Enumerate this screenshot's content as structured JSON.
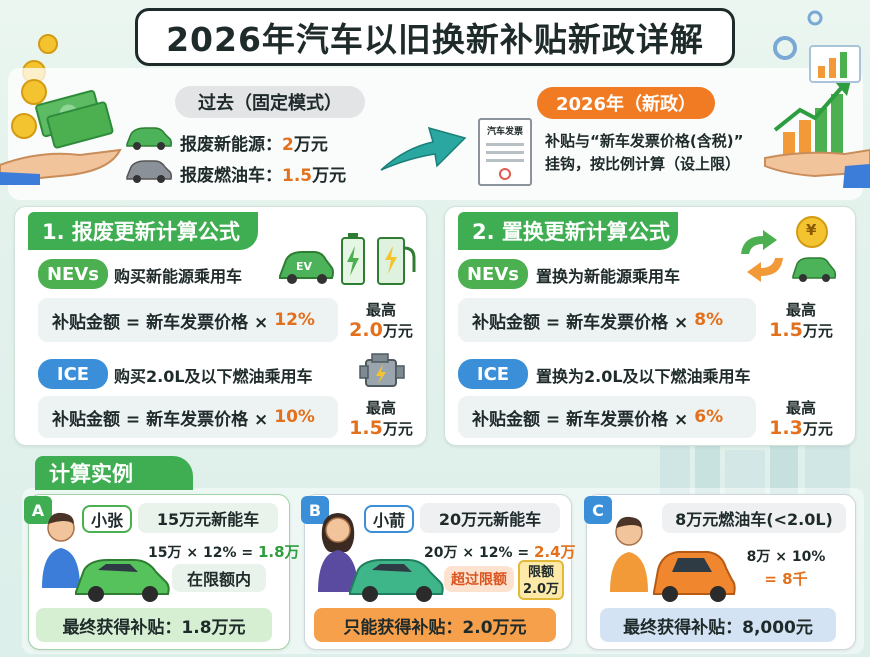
{
  "title": "2026年汽车以旧换新补贴新政详解",
  "top": {
    "past_label": "过去（固定模式）",
    "past_nev_label": "报废新能源：",
    "past_nev_value": "2",
    "past_nev_unit": "万元",
    "past_ice_label": "报废燃油车：",
    "past_ice_value": "1.5",
    "past_ice_unit": "万元",
    "new_label": "2026年（新政）",
    "invoice_label": "汽车发票",
    "new_desc_line1": "补贴与“新车发票价格(含税)”",
    "new_desc_line2": "挂钩，按比例计算（设上限）"
  },
  "scrap": {
    "heading": "1. 报废更新计算公式",
    "nev_tag": "NEVs",
    "nev_desc": "购买新能源乘用车",
    "nev_formula": "补贴金额 = 新车发票价格 ×",
    "nev_pct": "12%",
    "nev_max_label": "最高",
    "nev_max_value": "2.0",
    "nev_max_unit": "万元",
    "ev_badge": "EV",
    "ice_tag": "ICE",
    "ice_desc": "购买2.0L及以下燃油乘用车",
    "ice_formula": "补贴金额 = 新车发票价格 ×",
    "ice_pct": "10%",
    "ice_max_label": "最高",
    "ice_max_value": "1.5",
    "ice_max_unit": "万元"
  },
  "replace": {
    "heading": "2. 置换更新计算公式",
    "nev_tag": "NEVs",
    "nev_desc": "置换为新能源乘用车",
    "nev_formula": "补贴金额 = 新车发票价格 ×",
    "nev_pct": "8%",
    "nev_max_label": "最高",
    "nev_max_value": "1.5",
    "nev_max_unit": "万元",
    "ice_tag": "ICE",
    "ice_desc": "置换为2.0L及以下燃油乘用车",
    "ice_formula": "补贴金额 = 新车发票价格 ×",
    "ice_pct": "6%",
    "ice_max_label": "最高",
    "ice_max_value": "1.3",
    "ice_max_unit": "万元"
  },
  "examples": {
    "heading": "计算实例",
    "a": {
      "letter": "A",
      "name": "小张",
      "car": "15万元新能车",
      "calc": "15万 × 12% =",
      "calc_result": "1.8万",
      "note": "在限额内",
      "final": "最终获得补贴：1.8万元"
    },
    "b": {
      "letter": "B",
      "name": "小葥",
      "car": "20万元新能车",
      "calc": "20万 × 12% =",
      "calc_result": "2.4万",
      "over": "超过限额",
      "limit_l1": "限额",
      "limit_l2": "2.0万",
      "final": "只能获得补贴：2.0万元"
    },
    "c": {
      "letter": "C",
      "car": "8万元燃油车(<2.0L)",
      "calc": "8万 × 10%",
      "calc_result": "= 8千",
      "final": "最终获得补贴：8,000元"
    }
  },
  "coin_symbol": "¥",
  "colors": {
    "green": "#3fae52",
    "orange": "#f07b22",
    "blue": "#3b8fd9",
    "accent_text": "#e2701c"
  }
}
